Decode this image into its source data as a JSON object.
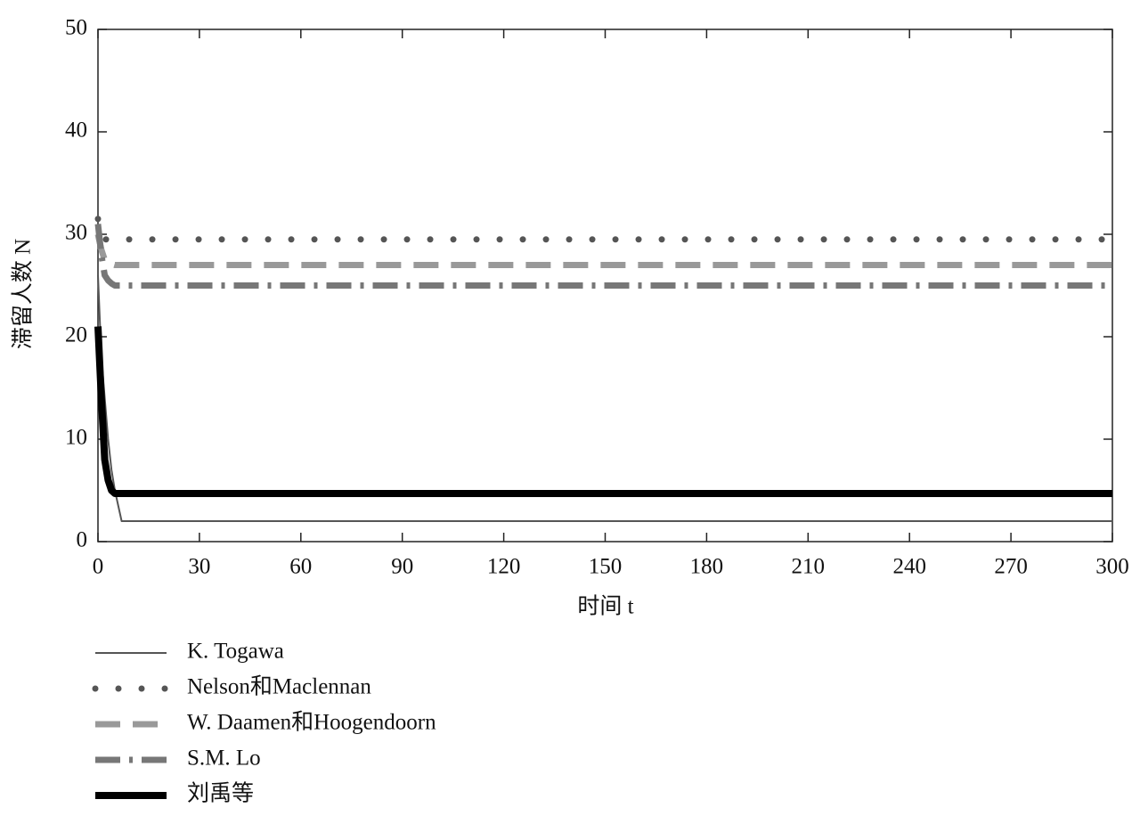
{
  "chart_data": {
    "type": "line",
    "x_label": "时间 t",
    "y_label": "滞留人数 N",
    "x": [
      0,
      1,
      2,
      3,
      4,
      5,
      7,
      10,
      300
    ],
    "xlim": [
      0,
      300
    ],
    "xticks": [
      0,
      30,
      60,
      90,
      120,
      150,
      180,
      210,
      240,
      270,
      300
    ],
    "ylim": [
      0,
      50
    ],
    "yticks": [
      0,
      10,
      20,
      30,
      40,
      50
    ],
    "grid": false,
    "legend": "below",
    "series": [
      {
        "name": "K. Togawa",
        "color": "#555555",
        "linestyle": "solid",
        "values": [
          26,
          18,
          14,
          10,
          7,
          5,
          2,
          2,
          2
        ]
      },
      {
        "name": "Nelson和Maclennan",
        "color": "#555555",
        "linestyle": "dotted",
        "values": [
          31.5,
          30,
          29.5,
          29.5,
          29.5,
          29.5,
          29.5,
          29.5,
          29.5
        ]
      },
      {
        "name": "W. Daamen和Hoogendoorn",
        "color": "#999999",
        "linestyle": "dashed",
        "values": [
          30,
          28.5,
          27.5,
          27.3,
          27.1,
          27,
          27,
          27,
          27
        ]
      },
      {
        "name": "S.M. Lo",
        "color": "#777777",
        "linestyle": "dashdot",
        "values": [
          31,
          28,
          26,
          25.5,
          25.2,
          25,
          25,
          25,
          25
        ]
      },
      {
        "name": "刘禹等",
        "color": "#000000",
        "linestyle": "thick",
        "values": [
          21,
          14,
          8,
          6,
          5,
          4.7,
          4.7,
          4.7,
          4.7
        ]
      }
    ]
  }
}
